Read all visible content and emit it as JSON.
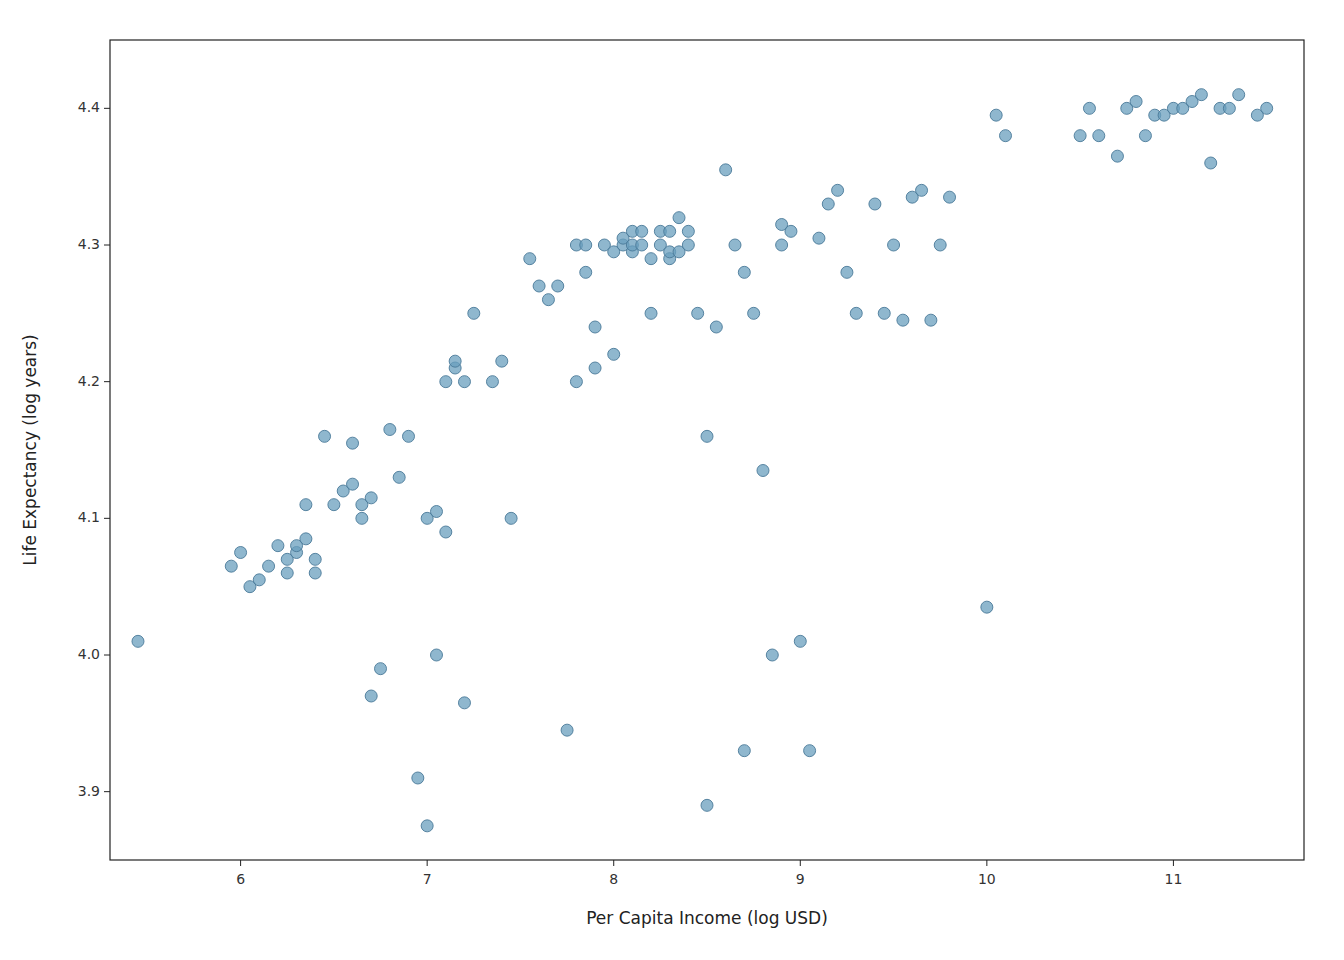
{
  "chart_data": {
    "type": "scatter",
    "x": [
      5.45,
      5.95,
      6.0,
      6.05,
      6.1,
      6.15,
      6.2,
      6.25,
      6.25,
      6.3,
      6.3,
      6.35,
      6.35,
      6.4,
      6.4,
      6.45,
      6.5,
      6.55,
      6.6,
      6.6,
      6.65,
      6.65,
      6.7,
      6.7,
      6.75,
      6.8,
      6.85,
      6.9,
      6.95,
      7.0,
      7.0,
      7.05,
      7.05,
      7.1,
      7.1,
      7.15,
      7.15,
      7.2,
      7.2,
      7.25,
      7.35,
      7.4,
      7.45,
      7.55,
      7.6,
      7.65,
      7.7,
      7.75,
      7.8,
      7.8,
      7.85,
      7.85,
      7.9,
      7.9,
      7.95,
      8.0,
      8.0,
      8.05,
      8.05,
      8.1,
      8.1,
      8.1,
      8.15,
      8.15,
      8.2,
      8.2,
      8.25,
      8.25,
      8.3,
      8.3,
      8.3,
      8.35,
      8.35,
      8.4,
      8.4,
      8.45,
      8.5,
      8.5,
      8.55,
      8.6,
      8.65,
      8.7,
      8.7,
      8.75,
      8.8,
      8.85,
      8.9,
      8.9,
      8.95,
      9.0,
      9.05,
      9.1,
      9.15,
      9.2,
      9.25,
      9.3,
      9.4,
      9.45,
      9.5,
      9.55,
      9.6,
      9.65,
      9.7,
      9.75,
      9.8,
      10.0,
      10.05,
      10.1,
      10.5,
      10.55,
      10.6,
      10.7,
      10.75,
      10.8,
      10.85,
      10.9,
      10.95,
      11.0,
      11.05,
      11.1,
      11.15,
      11.2,
      11.25,
      11.3,
      11.35,
      11.45,
      11.5
    ],
    "y": [
      4.01,
      4.065,
      4.075,
      4.05,
      4.055,
      4.065,
      4.08,
      4.06,
      4.07,
      4.075,
      4.08,
      4.085,
      4.11,
      4.06,
      4.07,
      4.16,
      4.11,
      4.12,
      4.125,
      4.155,
      4.1,
      4.11,
      4.115,
      3.97,
      3.99,
      4.165,
      4.13,
      4.16,
      3.91,
      4.1,
      3.875,
      4.0,
      4.105,
      4.09,
      4.2,
      4.21,
      4.215,
      3.965,
      4.2,
      4.25,
      4.2,
      4.215,
      4.1,
      4.29,
      4.27,
      4.26,
      4.27,
      3.945,
      4.2,
      4.3,
      4.28,
      4.3,
      4.21,
      4.24,
      4.3,
      4.22,
      4.295,
      4.3,
      4.305,
      4.295,
      4.3,
      4.31,
      4.3,
      4.31,
      4.25,
      4.29,
      4.3,
      4.31,
      4.29,
      4.295,
      4.31,
      4.295,
      4.32,
      4.3,
      4.31,
      4.25,
      3.89,
      4.16,
      4.24,
      4.355,
      4.3,
      4.28,
      3.93,
      4.25,
      4.135,
      4.0,
      4.3,
      4.315,
      4.31,
      4.01,
      3.93,
      4.305,
      4.33,
      4.34,
      4.28,
      4.25,
      4.33,
      4.25,
      4.3,
      4.245,
      4.335,
      4.34,
      4.245,
      4.3,
      4.335,
      4.035,
      4.395,
      4.38,
      4.38,
      4.4,
      4.38,
      4.365,
      4.4,
      4.405,
      4.38,
      4.395,
      4.395,
      4.4,
      4.4,
      4.405,
      4.41,
      4.36,
      4.4,
      4.4,
      4.41,
      4.395,
      4.4
    ],
    "xlabel": "Per Capita Income (log USD)",
    "ylabel": "Life Expectancy (log years)",
    "xlim": [
      5.3,
      11.7
    ],
    "ylim": [
      3.85,
      4.45
    ],
    "xticks": [
      6,
      7,
      8,
      9,
      10,
      11
    ],
    "yticks": [
      3.9,
      {
        "value": 4.0,
        "label": "4.0"
      },
      4.1,
      4.2,
      4.3,
      4.4
    ],
    "color": "#6a9fbe",
    "grid": false
  }
}
